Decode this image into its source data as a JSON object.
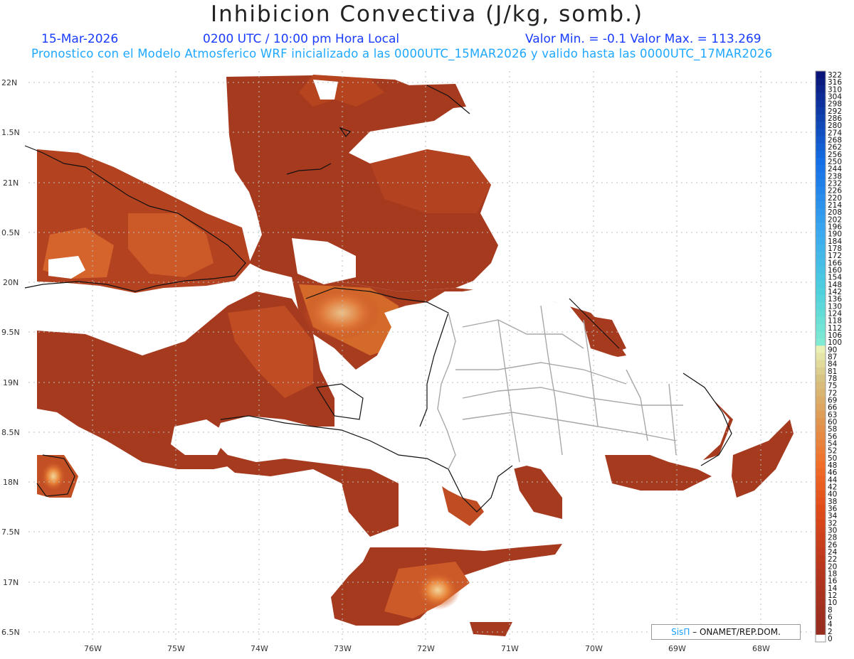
{
  "header": {
    "title": "Inhibicion Convectiva (J/kg, somb.)",
    "date": "15-Mar-2026",
    "time": "0200 UTC / 10:00 pm Hora Local",
    "min_max": "Valor Min. = -0.1  Valor Max. = 113.269",
    "subtitle": "Pronostico con el Modelo Atmosferico WRF inicializado a las 0000UTC_15MAR2026 y valido hasta las  0000UTC_17MAR2026"
  },
  "axes": {
    "lat_labels": [
      "22N",
      "1.5N",
      "21N",
      "0.5N",
      "20N",
      "9.5N",
      "19N",
      "8.5N",
      "18N",
      "7.5N",
      "17N",
      "6.5N"
    ],
    "lon_labels": [
      "76W",
      "75W",
      "74W",
      "73W",
      "72W",
      "71W",
      "70W",
      "69W",
      "68W"
    ]
  },
  "colorbar": {
    "labels": [
      "322",
      "316",
      "310",
      "304",
      "298",
      "292",
      "286",
      "280",
      "274",
      "268",
      "262",
      "256",
      "250",
      "244",
      "238",
      "232",
      "226",
      "220",
      "214",
      "208",
      "202",
      "196",
      "190",
      "184",
      "178",
      "172",
      "166",
      "160",
      "154",
      "148",
      "142",
      "136",
      "130",
      "124",
      "118",
      "112",
      "106",
      "100",
      "90",
      "87",
      "84",
      "81",
      "78",
      "75",
      "72",
      "69",
      "66",
      "63",
      "60",
      "58",
      "56",
      "54",
      "52",
      "50",
      "48",
      "46",
      "44",
      "42",
      "40",
      "38",
      "36",
      "34",
      "32",
      "30",
      "28",
      "26",
      "24",
      "22",
      "20",
      "18",
      "16",
      "14",
      "12",
      "10",
      "8",
      "6",
      "4",
      "2",
      "0"
    ]
  },
  "credit": {
    "brand": "SisΠ",
    "text": "– ONAMET/REP.DOM."
  },
  "colors": {
    "field_dark": "#a33a1e",
    "field_mid": "#c24a22",
    "field_high": "#e6b27a",
    "header_blue": "#1a3cff",
    "subtitle_blue": "#1fa8ff"
  }
}
